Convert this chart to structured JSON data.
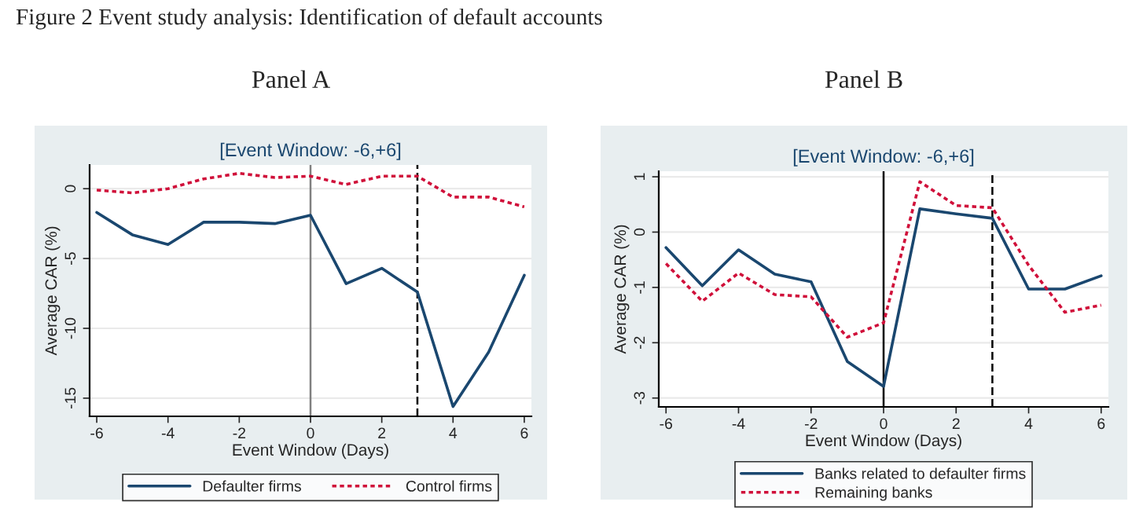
{
  "chart_data": [
    {
      "type": "line",
      "title": "Panel A",
      "subtitle": "[Event Window: -6,+6]",
      "xlabel": "Event Window (Days)",
      "ylabel": "Average CAR (%)",
      "annotations": [
        "Figure 2 Event study analysis: Identification of default accounts"
      ],
      "x": [
        -6,
        -5,
        -4,
        -3,
        -2,
        -1,
        0,
        1,
        2,
        3,
        4,
        5,
        6
      ],
      "series": [
        {
          "name": "Defaulter firms",
          "color": "#1a476f",
          "line_style": "solid",
          "values": [
            -1.7,
            -3.3,
            -4.0,
            -2.4,
            -2.4,
            -2.5,
            -1.9,
            -6.8,
            -5.7,
            -7.4,
            -15.6,
            -11.7,
            -6.2
          ]
        },
        {
          "name": "Control firms",
          "color": "#d0103a",
          "line_style": "dotted",
          "values": [
            -0.1,
            -0.3,
            0.0,
            0.7,
            1.1,
            0.8,
            0.9,
            0.3,
            0.9,
            0.9,
            -0.6,
            -0.6,
            -1.3
          ]
        }
      ],
      "xlim": [
        -6.2,
        6.2
      ],
      "xticks": [
        -6,
        -4,
        -2,
        0,
        2,
        4,
        6
      ],
      "ylim": [
        -16.3,
        1.7
      ],
      "yticks": [
        {
          "value": -15,
          "label": "-15"
        },
        {
          "value": -10,
          "label": "-10"
        },
        {
          "value": -5,
          "label": "-5"
        },
        0
      ],
      "ref_lines": [
        {
          "axis": "x",
          "value": 0,
          "color": "#808080",
          "line_style": "solid"
        },
        {
          "axis": "x",
          "value": 3,
          "color": "#000000",
          "line_style": "dashed"
        }
      ],
      "grid": "y",
      "legend": "bottom"
    },
    {
      "type": "line",
      "title": "Panel B",
      "subtitle": "[Event Window: -6,+6]",
      "xlabel": "Event Window (Days)",
      "ylabel": "Average CAR (%)",
      "x": [
        -6,
        -5,
        -4,
        -3,
        -2,
        -1,
        0,
        1,
        2,
        3,
        4,
        5,
        6
      ],
      "series": [
        {
          "name": "Banks related to defaulter firms",
          "color": "#1a476f",
          "line_style": "solid",
          "values": [
            -0.28,
            -0.97,
            -0.32,
            -0.76,
            -0.9,
            -2.34,
            -2.79,
            0.42,
            0.33,
            0.25,
            -1.03,
            -1.03,
            -0.79
          ]
        },
        {
          "name": "Remaining banks",
          "color": "#d0103a",
          "line_style": "dotted",
          "values": [
            -0.57,
            -1.25,
            -0.74,
            -1.13,
            -1.17,
            -1.9,
            -1.64,
            0.91,
            0.48,
            0.44,
            -0.6,
            -1.45,
            -1.32
          ]
        }
      ],
      "xlim": [
        -6.2,
        6.2
      ],
      "xticks": [
        -6,
        -4,
        -2,
        0,
        2,
        4,
        6
      ],
      "ylim": [
        -3.16,
        1.1
      ],
      "yticks": [
        {
          "value": -3,
          "label": "-3"
        },
        {
          "value": -2,
          "label": "-2"
        },
        {
          "value": -1,
          "label": "-1"
        },
        0,
        1
      ],
      "ref_lines": [
        {
          "axis": "x",
          "value": 0,
          "color": "#000000",
          "line_style": "solid"
        },
        {
          "axis": "x",
          "value": 3,
          "color": "#000000",
          "line_style": "dashed"
        }
      ],
      "grid": "y",
      "legend": "bottom"
    }
  ]
}
